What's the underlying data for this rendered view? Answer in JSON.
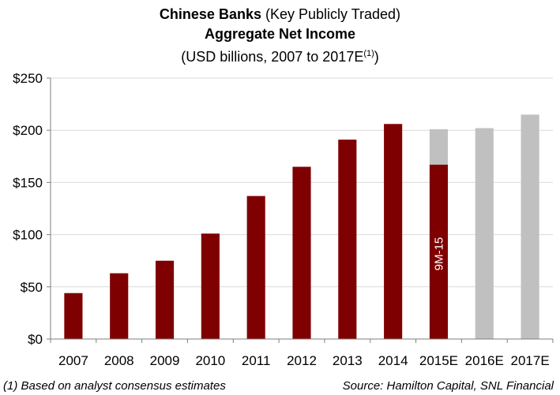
{
  "header": {
    "title_bold": "Chinese Banks",
    "title_rest": " (Key Publicly Traded)",
    "subtitle": "Aggregate Net Income",
    "units_main": "(USD billions,  2007 to 2017E",
    "units_sup": "(1)",
    "units_close": ")"
  },
  "chart_data": {
    "type": "bar",
    "categories": [
      "2007",
      "2008",
      "2009",
      "2010",
      "2011",
      "2012",
      "2013",
      "2014",
      "2015E",
      "2016E",
      "2017E"
    ],
    "series": [
      {
        "values": [
          44,
          63,
          75,
          101,
          137,
          165,
          191,
          206,
          167,
          null,
          null
        ],
        "color": "#7f0000"
      },
      {
        "values": [
          null,
          null,
          null,
          null,
          null,
          null,
          null,
          null,
          201,
          202,
          215
        ],
        "color": "#c0c0c0"
      }
    ],
    "bar_annotation": {
      "category": "2015E",
      "text": "9M-15"
    },
    "ylim": [
      0,
      250
    ],
    "yticks": [
      0,
      50,
      100,
      150,
      200,
      250
    ],
    "ytick_labels": [
      "$0",
      "$50",
      "$100",
      "$150",
      "$200",
      "$250"
    ],
    "xlabel": "",
    "ylabel": "",
    "grid": true,
    "gridline_color": "#d9d9d9"
  },
  "footnotes": {
    "left": "(1) Based on analyst consensus estimates",
    "right": "Source: Hamilton Capital, SNL Financial"
  }
}
